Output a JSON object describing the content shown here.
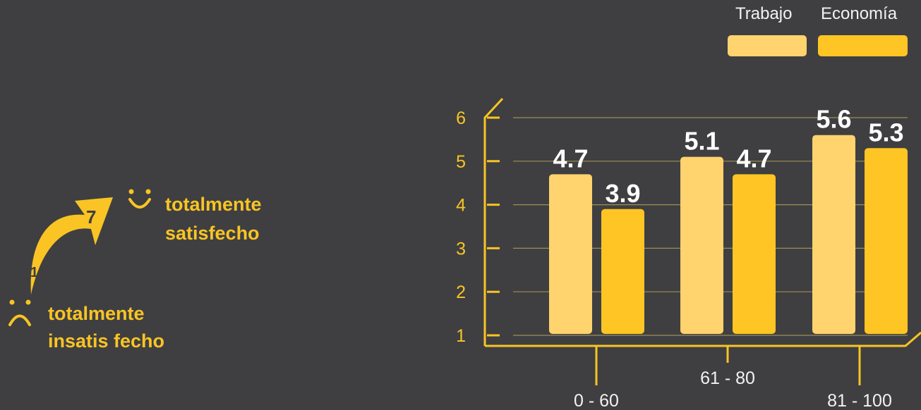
{
  "legend": [
    {
      "label": "Trabajo",
      "color": "#ffd36e"
    },
    {
      "label": "Economía",
      "color": "#ffc524"
    }
  ],
  "scale": {
    "top_number": "7",
    "bottom_number": "1",
    "top_label_line1": "totalmente",
    "top_label_line2": "satisfecho",
    "bottom_label_line1": "totalmente",
    "bottom_label_line2": "insatis fecho"
  },
  "chart_data": {
    "type": "bar",
    "categories": [
      "0 - 60",
      "61 - 80",
      "81 - 100"
    ],
    "series": [
      {
        "name": "Trabajo",
        "values": [
          4.7,
          5.1,
          5.6
        ]
      },
      {
        "name": "Economía",
        "values": [
          3.9,
          4.7,
          5.3
        ]
      }
    ],
    "value_labels": [
      [
        "4.7",
        "5.1",
        "5.6"
      ],
      [
        "3.9",
        "4.7",
        "5.3"
      ]
    ],
    "yticks": [
      "1",
      "2",
      "3",
      "4",
      "5",
      "6"
    ],
    "ylim": [
      1,
      6
    ],
    "grid": true,
    "legend_position": "top-right"
  }
}
